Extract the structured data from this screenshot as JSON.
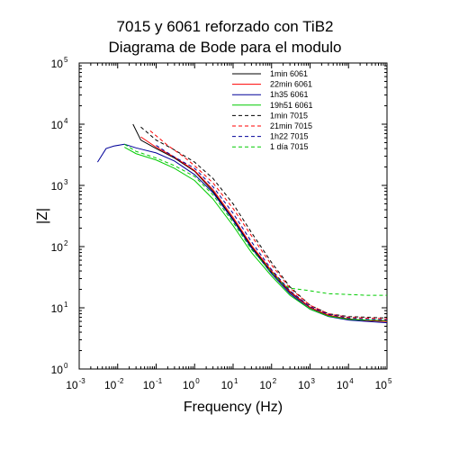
{
  "chart_data": {
    "type": "line",
    "title_lines": [
      "7015 y 6061 reforzado con TiB2",
      "Diagrama de Bode para el modulo"
    ],
    "xlabel": "Frequency (Hz)",
    "ylabel": "|Z|",
    "x_scale": "log",
    "y_scale": "log",
    "xlim": [
      0.001,
      100000
    ],
    "ylim": [
      1,
      100000
    ],
    "x_ticks": [
      {
        "base": "10",
        "exp": "-3",
        "value": 0.001
      },
      {
        "base": "10",
        "exp": "-2",
        "value": 0.01
      },
      {
        "base": "10",
        "exp": "-1",
        "value": 0.1
      },
      {
        "base": "10",
        "exp": "0",
        "value": 1
      },
      {
        "base": "10",
        "exp": "1",
        "value": 10
      },
      {
        "base": "10",
        "exp": "2",
        "value": 100
      },
      {
        "base": "10",
        "exp": "3",
        "value": 1000
      },
      {
        "base": "10",
        "exp": "4",
        "value": 10000
      },
      {
        "base": "10",
        "exp": "5",
        "value": 100000
      }
    ],
    "y_ticks": [
      {
        "base": "10",
        "exp": "0",
        "value": 1
      },
      {
        "base": "10",
        "exp": "1",
        "value": 10
      },
      {
        "base": "10",
        "exp": "2",
        "value": 100
      },
      {
        "base": "10",
        "exp": "3",
        "value": 1000
      },
      {
        "base": "10",
        "exp": "4",
        "value": 10000
      },
      {
        "base": "10",
        "exp": "5",
        "value": 100000
      }
    ],
    "grid": false,
    "legend_position": "top-right",
    "series": [
      {
        "name": "1min 6061",
        "color": "#000000",
        "dash": "solid",
        "points": [
          [
            0.025,
            10000
          ],
          [
            0.04,
            5500
          ],
          [
            0.1,
            4000
          ],
          [
            0.3,
            2800
          ],
          [
            1,
            1700
          ],
          [
            3,
            800
          ],
          [
            10,
            280
          ],
          [
            30,
            100
          ],
          [
            100,
            38
          ],
          [
            300,
            18
          ],
          [
            1000,
            10
          ],
          [
            3000,
            7.5
          ],
          [
            10000,
            6.5
          ],
          [
            30000,
            6.2
          ],
          [
            100000,
            6
          ]
        ]
      },
      {
        "name": "22min 6061",
        "color": "#ff0000",
        "dash": "solid",
        "points": [
          [
            0.04,
            6200
          ],
          [
            0.1,
            4200
          ],
          [
            0.3,
            2900
          ],
          [
            1,
            1750
          ],
          [
            3,
            850
          ],
          [
            10,
            300
          ],
          [
            30,
            105
          ],
          [
            100,
            40
          ],
          [
            300,
            18.5
          ],
          [
            1000,
            10.2
          ],
          [
            3000,
            7.6
          ],
          [
            10000,
            6.6
          ],
          [
            30000,
            6.2
          ],
          [
            100000,
            6
          ]
        ]
      },
      {
        "name": "1h35 6061",
        "color": "#000099",
        "dash": "solid",
        "points": [
          [
            0.003,
            2400
          ],
          [
            0.005,
            4000
          ],
          [
            0.008,
            4400
          ],
          [
            0.015,
            4700
          ],
          [
            0.03,
            4100
          ],
          [
            0.1,
            3400
          ],
          [
            0.3,
            2500
          ],
          [
            1,
            1500
          ],
          [
            3,
            760
          ],
          [
            10,
            270
          ],
          [
            30,
            95
          ],
          [
            100,
            36
          ],
          [
            300,
            17
          ],
          [
            1000,
            9.5
          ],
          [
            3000,
            7.2
          ],
          [
            10000,
            6.3
          ],
          [
            30000,
            6
          ],
          [
            100000,
            5.7
          ]
        ]
      },
      {
        "name": "19h51 6061",
        "color": "#00cc00",
        "dash": "solid",
        "points": [
          [
            0.015,
            4200
          ],
          [
            0.03,
            3300
          ],
          [
            0.1,
            2600
          ],
          [
            0.3,
            1900
          ],
          [
            1,
            1200
          ],
          [
            3,
            600
          ],
          [
            10,
            220
          ],
          [
            30,
            80
          ],
          [
            100,
            33
          ],
          [
            300,
            16
          ],
          [
            1000,
            9.5
          ],
          [
            3000,
            7.3
          ],
          [
            10000,
            6.5
          ],
          [
            30000,
            6.3
          ],
          [
            100000,
            6.2
          ]
        ]
      },
      {
        "name": "1min 7015",
        "color": "#000000",
        "dash": "dashed",
        "points": [
          [
            0.04,
            9000
          ],
          [
            0.1,
            5500
          ],
          [
            0.3,
            3800
          ],
          [
            1,
            2400
          ],
          [
            3,
            1300
          ],
          [
            10,
            500
          ],
          [
            30,
            170
          ],
          [
            100,
            55
          ],
          [
            300,
            22
          ],
          [
            1000,
            11
          ],
          [
            3000,
            8
          ],
          [
            10000,
            7.2
          ],
          [
            30000,
            7
          ],
          [
            100000,
            6.8
          ]
        ]
      },
      {
        "name": "21min 7015",
        "color": "#ff0000",
        "dash": "dashed",
        "points": [
          [
            0.07,
            7800
          ],
          [
            0.2,
            4500
          ],
          [
            0.5,
            3000
          ],
          [
            1,
            2100
          ],
          [
            3,
            1100
          ],
          [
            10,
            420
          ],
          [
            30,
            150
          ],
          [
            100,
            50
          ],
          [
            300,
            21
          ],
          [
            1000,
            11
          ],
          [
            3000,
            8
          ],
          [
            10000,
            7
          ],
          [
            30000,
            6.8
          ],
          [
            100000,
            6.6
          ]
        ]
      },
      {
        "name": "1h22 7015",
        "color": "#000099",
        "dash": "dashed",
        "points": [
          [
            0.1,
            4500
          ],
          [
            0.3,
            2900
          ],
          [
            1,
            1900
          ],
          [
            3,
            950
          ],
          [
            10,
            350
          ],
          [
            30,
            120
          ],
          [
            100,
            42
          ],
          [
            300,
            19
          ],
          [
            1000,
            10.5
          ],
          [
            3000,
            7.8
          ],
          [
            10000,
            6.8
          ],
          [
            30000,
            6.5
          ],
          [
            100000,
            6.3
          ]
        ]
      },
      {
        "name": "1 día 7015",
        "color": "#00cc00",
        "dash": "dashed",
        "points": [
          [
            0.015,
            4700
          ],
          [
            0.03,
            3600
          ],
          [
            0.1,
            2800
          ],
          [
            0.3,
            2100
          ],
          [
            1,
            1400
          ],
          [
            3,
            700
          ],
          [
            10,
            250
          ],
          [
            30,
            90
          ],
          [
            100,
            38
          ],
          [
            200,
            24
          ],
          [
            300,
            21
          ],
          [
            1000,
            19
          ],
          [
            3000,
            17
          ],
          [
            10000,
            16.5
          ],
          [
            30000,
            16
          ],
          [
            100000,
            16
          ]
        ]
      }
    ]
  }
}
